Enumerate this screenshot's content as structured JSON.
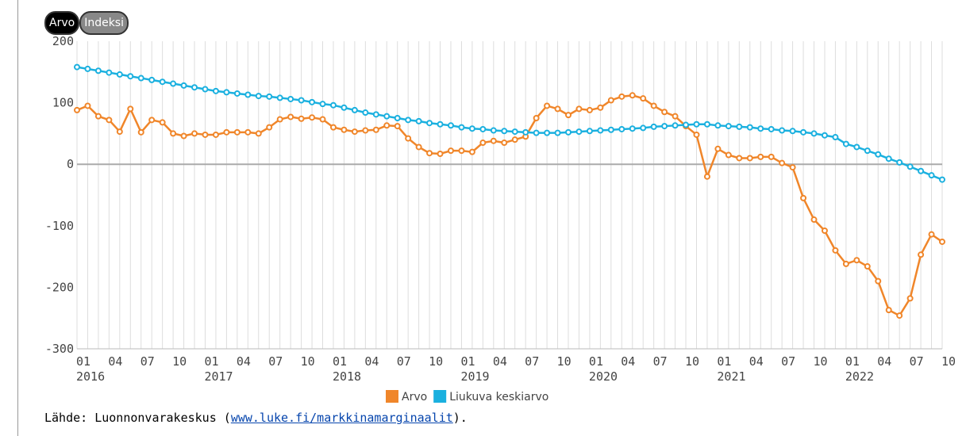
{
  "buttons": [
    "Arvo",
    "Indeksi"
  ],
  "chart_data": {
    "type": "line",
    "x": [
      "2016-01",
      "2016-02",
      "2016-03",
      "2016-04",
      "2016-05",
      "2016-06",
      "2016-07",
      "2016-08",
      "2016-09",
      "2016-10",
      "2016-11",
      "2016-12",
      "2017-01",
      "2017-02",
      "2017-03",
      "2017-04",
      "2017-05",
      "2017-06",
      "2017-07",
      "2017-08",
      "2017-09",
      "2017-10",
      "2017-11",
      "2017-12",
      "2018-01",
      "2018-02",
      "2018-03",
      "2018-04",
      "2018-05",
      "2018-06",
      "2018-07",
      "2018-08",
      "2018-09",
      "2018-10",
      "2018-11",
      "2018-12",
      "2019-01",
      "2019-02",
      "2019-03",
      "2019-04",
      "2019-05",
      "2019-06",
      "2019-07",
      "2019-08",
      "2019-09",
      "2019-10",
      "2019-11",
      "2019-12",
      "2020-01",
      "2020-02",
      "2020-03",
      "2020-04",
      "2020-05",
      "2020-06",
      "2020-07",
      "2020-08",
      "2020-09",
      "2020-10",
      "2020-11",
      "2020-12",
      "2021-01",
      "2021-02",
      "2021-03",
      "2021-04",
      "2021-05",
      "2021-06",
      "2021-07",
      "2021-08",
      "2021-09",
      "2021-10",
      "2021-11",
      "2021-12",
      "2022-01",
      "2022-02",
      "2022-03",
      "2022-04",
      "2022-05",
      "2022-06",
      "2022-07",
      "2022-08",
      "2022-09",
      "2022-10"
    ],
    "series": [
      {
        "name": "Arvo",
        "color": "#f0862a",
        "values": [
          88,
          95,
          78,
          72,
          53,
          90,
          52,
          72,
          68,
          50,
          46,
          50,
          48,
          48,
          52,
          52,
          52,
          50,
          60,
          73,
          77,
          74,
          76,
          73,
          60,
          56,
          53,
          55,
          56,
          63,
          62,
          42,
          28,
          18,
          17,
          22,
          22,
          20,
          35,
          38,
          35,
          40,
          45,
          75,
          95,
          90,
          80,
          90,
          88,
          92,
          104,
          110,
          112,
          107,
          95,
          85,
          78,
          62,
          48,
          -20,
          25,
          15,
          10,
          10,
          12,
          12,
          2,
          -5,
          -55,
          -90,
          -108,
          -140,
          -162,
          -156,
          -166,
          -190,
          -237,
          -246,
          -218,
          -147,
          -114,
          -126
        ]
      },
      {
        "name": "Liukuva keskiarvo",
        "color": "#1ab0df",
        "values": [
          158,
          155,
          152,
          149,
          146,
          143,
          140,
          137,
          134,
          131,
          128,
          125,
          122,
          119,
          117,
          115,
          113,
          111,
          110,
          108,
          106,
          104,
          101,
          98,
          96,
          92,
          88,
          84,
          81,
          78,
          75,
          72,
          70,
          67,
          65,
          63,
          60,
          58,
          57,
          55,
          54,
          53,
          52,
          51,
          51,
          51,
          52,
          53,
          54,
          55,
          56,
          57,
          58,
          59,
          61,
          62,
          63,
          64,
          65,
          65,
          63,
          62,
          61,
          60,
          58,
          57,
          55,
          54,
          52,
          50,
          47,
          44,
          33,
          28,
          22,
          16,
          9,
          3,
          -4,
          -11,
          -18,
          -25
        ]
      }
    ],
    "ylim": [
      -300,
      200
    ],
    "yticks": [
      -300,
      -200,
      -100,
      0,
      100,
      200
    ],
    "zero_line": true,
    "xticks": [
      {
        "value": "2016-01",
        "label": "01"
      },
      {
        "value": "2016-04",
        "label": "04"
      },
      {
        "value": "2016-07",
        "label": "07"
      },
      {
        "value": "2016-10",
        "label": "10"
      },
      {
        "value": "2017-01",
        "label": "01"
      },
      {
        "value": "2017-04",
        "label": "04"
      },
      {
        "value": "2017-07",
        "label": "07"
      },
      {
        "value": "2017-10",
        "label": "10"
      },
      {
        "value": "2018-01",
        "label": "01"
      },
      {
        "value": "2018-04",
        "label": "04"
      },
      {
        "value": "2018-07",
        "label": "07"
      },
      {
        "value": "2018-10",
        "label": "10"
      },
      {
        "value": "2019-01",
        "label": "01"
      },
      {
        "value": "2019-04",
        "label": "04"
      },
      {
        "value": "2019-07",
        "label": "07"
      },
      {
        "value": "2019-10",
        "label": "10"
      },
      {
        "value": "2020-01",
        "label": "01"
      },
      {
        "value": "2020-04",
        "label": "04"
      },
      {
        "value": "2020-07",
        "label": "07"
      },
      {
        "value": "2020-10",
        "label": "10"
      },
      {
        "value": "2021-01",
        "label": "01"
      },
      {
        "value": "2021-04",
        "label": "04"
      },
      {
        "value": "2021-07",
        "label": "07"
      },
      {
        "value": "2021-10",
        "label": "10"
      },
      {
        "value": "2022-01",
        "label": "01"
      },
      {
        "value": "2022-04",
        "label": "04"
      },
      {
        "value": "2022-07",
        "label": "07"
      },
      {
        "value": "2022-10",
        "label": "10"
      }
    ],
    "year_ticks": [
      {
        "value": "2016-01",
        "label": "2016"
      },
      {
        "value": "2017-01",
        "label": "2017"
      },
      {
        "value": "2018-01",
        "label": "2018"
      },
      {
        "value": "2019-01",
        "label": "2019"
      },
      {
        "value": "2020-01",
        "label": "2020"
      },
      {
        "value": "2021-01",
        "label": "2021"
      },
      {
        "value": "2022-01",
        "label": "2022"
      }
    ],
    "legend": "bottom"
  },
  "source": {
    "prefix": "Lähde: Luonnonvarakeskus (",
    "link": "www.luke.fi/markkinamarginaalit",
    "suffix": ")."
  }
}
